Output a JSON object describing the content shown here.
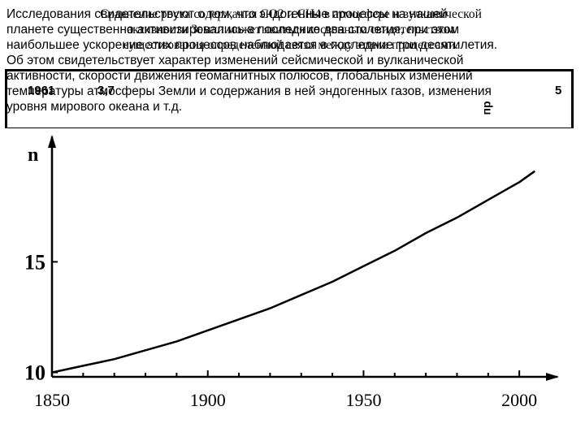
{
  "body_text": [
    "Исследования свидетельствуют о том, что эндогенные процессы на нашей",
    "планете существенно активизировались в последние два столетия, при этом",
    "наибольшее ускорение этих процессов наблюдается в последние три десятилетия.",
    "Об этом свидетельствует характер изменений сейсмической и вулканической",
    "активности, скорости движения геомагнитных полюсов, глобальных изменений",
    "температуры атмосферы Земли и содержания в ней эндогенных газов, изменения",
    "уровня мирового океана и т.д."
  ],
  "overlay_title": [
    "Сравнение роста содержания СО2 и СН4 в атмосфере и вулканической",
    "активности Земли может явиться косвенным свидетельством",
    "существования определенной связи между этими процессами."
  ],
  "background_table": {
    "cells": [
      "1961",
      "3,7",
      "5"
    ],
    "rotated_label": "пр"
  },
  "chart_data": {
    "type": "line",
    "title": "",
    "xlabel": "",
    "ylabel": "n",
    "xlim": [
      1850,
      2007
    ],
    "ylim": [
      9.8,
      19.2
    ],
    "x_ticks": [
      1850,
      1900,
      1950,
      2000
    ],
    "y_ticks": [
      10,
      15
    ],
    "grid": false,
    "series": [
      {
        "x": [
          1850,
          1860,
          1870,
          1880,
          1890,
          1900,
          1910,
          1920,
          1930,
          1940,
          1950,
          1960,
          1970,
          1980,
          1990,
          2000,
          2005
        ],
        "values": [
          10.0,
          10.3,
          10.6,
          11.0,
          11.4,
          11.9,
          12.4,
          12.9,
          13.5,
          14.1,
          14.8,
          15.5,
          16.3,
          17.0,
          17.8,
          18.6,
          19.1
        ]
      }
    ]
  },
  "colors": {
    "line": "#000000",
    "background": "#ffffff"
  }
}
